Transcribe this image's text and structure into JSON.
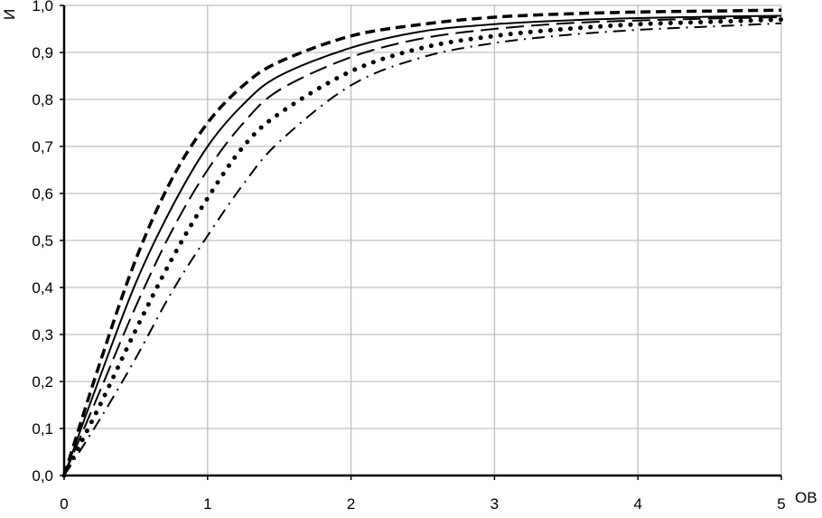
{
  "chart_data": {
    "type": "line",
    "title": "",
    "xlabel": "ОВ",
    "ylabel": "И",
    "xlim": [
      0,
      5
    ],
    "ylim": [
      0,
      1
    ],
    "grid": true,
    "x_ticks": [
      "0",
      "1",
      "2",
      "3",
      "4",
      "5"
    ],
    "y_ticks": [
      "0,0",
      "0,1",
      "0,2",
      "0,3",
      "0,4",
      "0,5",
      "0,6",
      "0,7",
      "0,8",
      "0,9",
      "1,0"
    ],
    "x": [
      0,
      0.25,
      0.5,
      0.75,
      1,
      1.25,
      1.5,
      2,
      2.5,
      3,
      3.5,
      4,
      4.5,
      5
    ],
    "series": [
      {
        "style": "heavy-dashed",
        "values": [
          0,
          0.24,
          0.46,
          0.63,
          0.75,
          0.83,
          0.88,
          0.935,
          0.96,
          0.975,
          0.982,
          0.986,
          0.988,
          0.99
        ]
      },
      {
        "style": "solid",
        "values": [
          0,
          0.21,
          0.41,
          0.57,
          0.7,
          0.79,
          0.85,
          0.91,
          0.945,
          0.96,
          0.968,
          0.973,
          0.976,
          0.978
        ]
      },
      {
        "style": "long-dashed",
        "values": [
          0,
          0.18,
          0.36,
          0.52,
          0.65,
          0.75,
          0.82,
          0.89,
          0.93,
          0.95,
          0.962,
          0.968,
          0.972,
          0.975
        ]
      },
      {
        "style": "dotted",
        "values": [
          0,
          0.15,
          0.31,
          0.46,
          0.59,
          0.7,
          0.77,
          0.86,
          0.91,
          0.935,
          0.95,
          0.96,
          0.965,
          0.97
        ]
      },
      {
        "style": "dash-dot",
        "values": [
          0,
          0.12,
          0.25,
          0.39,
          0.51,
          0.62,
          0.71,
          0.83,
          0.89,
          0.92,
          0.937,
          0.948,
          0.955,
          0.962
        ]
      }
    ],
    "colors": {
      "line": "#000000",
      "grid": "#bfbfbf"
    }
  }
}
